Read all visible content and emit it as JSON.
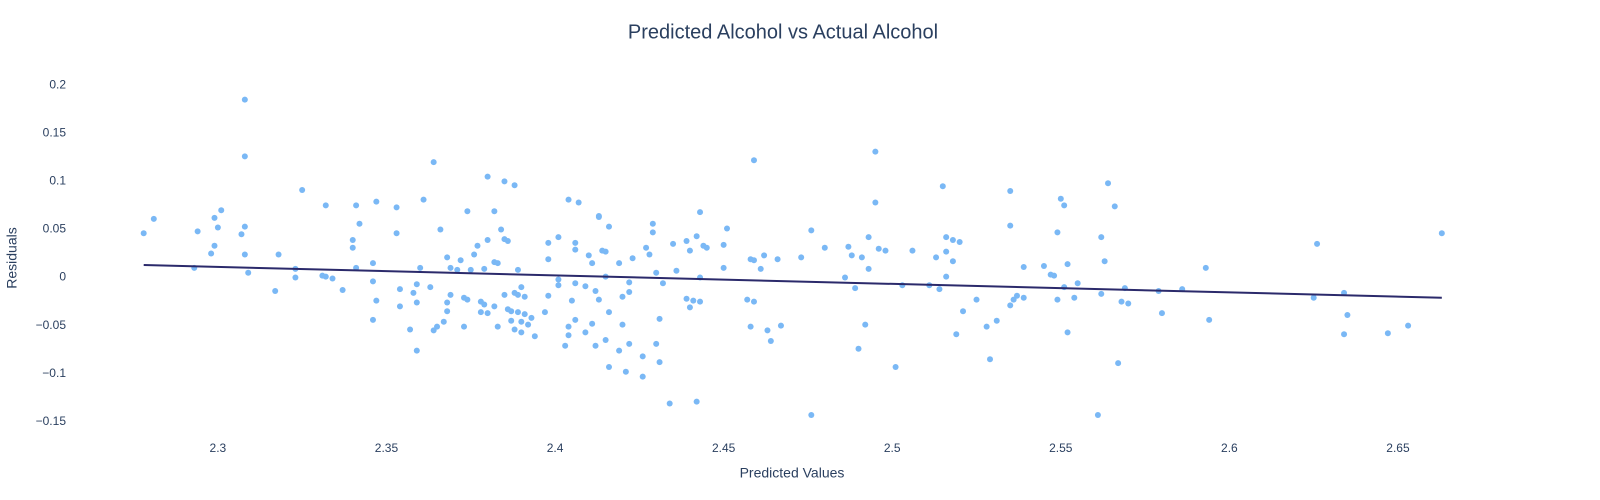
{
  "chart_data": {
    "type": "scatter",
    "title": "Predicted Alcohol vs Actual Alcohol",
    "xlabel": "Predicted Values",
    "ylabel": "Residuals",
    "xlim": [
      2.26,
      2.685
    ],
    "ylim": [
      -0.17,
      0.22
    ],
    "xticks": [
      2.3,
      2.35,
      2.4,
      2.45,
      2.5,
      2.55,
      2.6,
      2.65
    ],
    "yticks": [
      {
        "value": -0.15,
        "label": "−0.15"
      },
      {
        "value": -0.1,
        "label": "−0.1"
      },
      {
        "value": -0.05,
        "label": "−0.05"
      },
      0,
      0.05,
      0.1,
      0.15,
      0.2
    ],
    "grid": false,
    "series": [
      {
        "mode": "markers",
        "color": "#7ab8f5",
        "x": [
          2.278,
          2.281,
          2.293,
          2.294,
          2.298,
          2.299,
          2.299,
          2.3,
          2.301,
          2.307,
          2.308,
          2.308,
          2.308,
          2.308,
          2.309,
          2.317,
          2.318,
          2.323,
          2.323,
          2.325,
          2.331,
          2.332,
          2.332,
          2.334,
          2.337,
          2.34,
          2.34,
          2.341,
          2.342,
          2.341,
          2.346,
          2.346,
          2.346,
          2.347,
          2.347,
          2.353,
          2.353,
          2.354,
          2.354,
          2.357,
          2.359,
          2.358,
          2.359,
          2.36,
          2.361,
          2.359,
          2.363,
          2.364,
          2.365,
          2.364,
          2.366,
          2.368,
          2.367,
          2.368,
          2.369,
          2.368,
          2.369,
          2.371,
          2.372,
          2.373,
          2.373,
          2.374,
          2.374,
          2.375,
          2.376,
          2.377,
          2.378,
          2.378,
          2.379,
          2.379,
          2.38,
          2.38,
          2.38,
          2.382,
          2.382,
          2.382,
          2.383,
          2.383,
          2.384,
          2.385,
          2.385,
          2.385,
          2.386,
          2.386,
          2.387,
          2.387,
          2.388,
          2.388,
          2.388,
          2.389,
          2.389,
          2.389,
          2.39,
          2.39,
          2.39,
          2.391,
          2.391,
          2.392,
          2.393,
          2.394,
          2.397,
          2.398,
          2.398,
          2.398,
          2.401,
          2.401,
          2.401,
          2.403,
          2.404,
          2.404,
          2.404,
          2.405,
          2.406,
          2.406,
          2.406,
          2.406,
          2.407,
          2.409,
          2.409,
          2.41,
          2.411,
          2.411,
          2.412,
          2.412,
          2.413,
          2.413,
          2.413,
          2.414,
          2.415,
          2.415,
          2.416,
          2.415,
          2.416,
          2.416,
          2.419,
          2.419,
          2.42,
          2.42,
          2.421,
          2.422,
          2.422,
          2.422,
          2.423,
          2.426,
          2.426,
          2.427,
          2.428,
          2.429,
          2.429,
          2.43,
          2.43,
          2.431,
          2.431,
          2.432,
          2.434,
          2.435,
          2.436,
          2.439,
          2.439,
          2.44,
          2.44,
          2.441,
          2.442,
          2.442,
          2.443,
          2.443,
          2.443,
          2.444,
          2.445,
          2.45,
          2.45,
          2.451,
          2.457,
          2.458,
          2.458,
          2.459,
          2.459,
          2.459,
          2.461,
          2.462,
          2.463,
          2.464,
          2.466,
          2.467,
          2.473,
          2.476,
          2.476,
          2.48,
          2.486,
          2.487,
          2.488,
          2.489,
          2.49,
          2.491,
          2.492,
          2.493,
          2.493,
          2.495,
          2.495,
          2.496,
          2.498,
          2.501,
          2.503,
          2.506,
          2.511,
          2.513,
          2.514,
          2.515,
          2.516,
          2.516,
          2.516,
          2.518,
          2.518,
          2.519,
          2.52,
          2.521,
          2.525,
          2.528,
          2.529,
          2.531,
          2.535,
          2.535,
          2.535,
          2.536,
          2.537,
          2.539,
          2.539,
          2.545,
          2.547,
          2.548,
          2.549,
          2.549,
          2.55,
          2.551,
          2.551,
          2.552,
          2.552,
          2.554,
          2.555,
          2.562,
          2.562,
          2.561,
          2.563,
          2.564,
          2.566,
          2.567,
          2.568,
          2.569,
          2.57,
          2.579,
          2.58,
          2.586,
          2.593,
          2.594,
          2.625,
          2.626,
          2.634,
          2.634,
          2.635,
          2.647,
          2.653,
          2.663
        ],
        "values": [
          0.046,
          0.061,
          0.01,
          0.048,
          0.025,
          0.062,
          0.033,
          0.052,
          0.07,
          0.045,
          0.126,
          0.185,
          0.053,
          0.024,
          0.005,
          -0.014,
          0.024,
          0.009,
          0.0,
          0.091,
          0.002,
          0.075,
          0.001,
          -0.001,
          -0.013,
          0.031,
          0.039,
          0.075,
          0.056,
          0.01,
          -0.004,
          0.015,
          -0.044,
          0.079,
          -0.024,
          0.046,
          0.073,
          -0.012,
          -0.03,
          -0.054,
          -0.076,
          -0.016,
          -0.007,
          0.01,
          0.081,
          -0.026,
          -0.01,
          -0.055,
          -0.051,
          0.12,
          0.05,
          -0.035,
          -0.046,
          0.021,
          -0.018,
          -0.026,
          0.01,
          0.008,
          0.018,
          -0.051,
          -0.021,
          0.069,
          -0.023,
          0.008,
          0.024,
          0.033,
          -0.025,
          -0.036,
          -0.028,
          0.009,
          0.039,
          0.105,
          -0.037,
          -0.03,
          0.016,
          0.069,
          0.015,
          -0.051,
          0.05,
          -0.018,
          0.04,
          0.1,
          -0.033,
          0.038,
          -0.045,
          -0.035,
          -0.016,
          -0.054,
          0.096,
          0.008,
          -0.036,
          -0.018,
          -0.046,
          -0.01,
          -0.057,
          -0.02,
          -0.038,
          -0.049,
          -0.042,
          -0.061,
          -0.036,
          0.036,
          0.019,
          -0.019,
          -0.008,
          -0.002,
          0.042,
          -0.071,
          -0.06,
          0.081,
          -0.051,
          -0.024,
          -0.006,
          0.036,
          0.029,
          -0.044,
          0.078,
          -0.009,
          -0.057,
          0.023,
          -0.048,
          0.015,
          -0.014,
          -0.071,
          0.064,
          -0.023,
          0.063,
          0.028,
          -0.065,
          0.027,
          0.053,
          0.001,
          -0.036,
          -0.093,
          -0.076,
          0.015,
          -0.02,
          -0.049,
          -0.098,
          -0.069,
          -0.005,
          -0.015,
          0.02,
          -0.082,
          -0.103,
          0.031,
          0.024,
          0.056,
          0.047,
          -0.069,
          0.005,
          -0.043,
          -0.088,
          -0.006,
          -0.131,
          0.035,
          0.007,
          0.038,
          -0.022,
          -0.031,
          0.028,
          -0.024,
          -0.129,
          0.043,
          0.068,
          -0.025,
          0.0,
          0.033,
          0.031,
          0.034,
          0.01,
          0.051,
          -0.023,
          0.019,
          -0.051,
          -0.025,
          0.018,
          0.122,
          0.009,
          0.023,
          -0.055,
          -0.066,
          0.019,
          -0.05,
          0.021,
          0.049,
          -0.143,
          0.031,
          0.0,
          0.032,
          0.023,
          -0.011,
          -0.074,
          0.021,
          -0.049,
          0.042,
          0.009,
          0.131,
          0.078,
          0.03,
          0.028,
          -0.093,
          -0.008,
          0.028,
          -0.008,
          0.021,
          -0.012,
          0.095,
          0.027,
          0.001,
          0.042,
          0.017,
          0.039,
          -0.059,
          0.037,
          -0.035,
          -0.023,
          -0.051,
          -0.085,
          -0.045,
          -0.029,
          0.054,
          0.09,
          -0.023,
          -0.019,
          0.011,
          -0.021,
          0.012,
          0.003,
          0.002,
          0.047,
          -0.023,
          0.082,
          0.075,
          -0.01,
          -0.057,
          0.014,
          -0.021,
          -0.006,
          -0.017,
          0.042,
          -0.143,
          0.017,
          0.098,
          0.074,
          -0.089,
          -0.025,
          -0.011,
          -0.027,
          -0.014,
          -0.037,
          -0.012,
          0.01,
          -0.044,
          -0.021,
          0.035,
          -0.059,
          -0.016,
          -0.039,
          -0.058,
          -0.05,
          0.046
        ]
      },
      {
        "mode": "lines",
        "color": "#2b2a6b",
        "x": [
          2.278,
          2.663
        ],
        "values": [
          0.013,
          -0.021
        ]
      }
    ]
  }
}
